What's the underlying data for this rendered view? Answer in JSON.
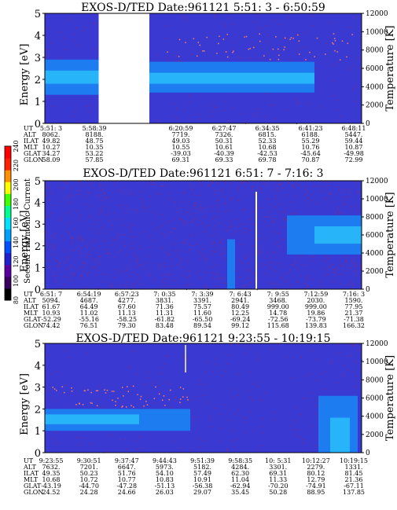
{
  "panels": [
    {
      "title": "EXOS-D/TED   Date:961121  5:51: 3 - 6:50:59",
      "y_ticks": [
        "0",
        "1",
        "2",
        "3",
        "4",
        "5"
      ],
      "y_right_ticks": [
        "0",
        "2000",
        "4000",
        "6000",
        "8000",
        "10000",
        "12000"
      ],
      "ylabel": "Energy [eV]",
      "ylabel_right": "Temperature [K]",
      "data_gap": {
        "from_col": 0.17,
        "to_col": 0.33
      },
      "table": {
        "row_labels": [
          "UT",
          "ALT",
          "ILAT",
          "MLT",
          "GLAT",
          "GLON"
        ],
        "columns": [
          [
            "5:51: 3",
            "8062.",
            "49.82",
            "10.27",
            "34.27",
            "58.09"
          ],
          [
            "5:58:39",
            "8188.",
            "48.75",
            "10.35",
            "53.22",
            "57.85"
          ],
          [
            "",
            "",
            "",
            "",
            "",
            ""
          ],
          [
            "6:20:59",
            "7719.",
            "49.03",
            "10.55",
            "-39.03",
            "69.31"
          ],
          [
            "6:27:47",
            "7326.",
            "50.31",
            "10.61",
            "-40.39",
            "69.33"
          ],
          [
            "6:34:35",
            "6815.",
            "52.33",
            "10.68",
            "-42.53",
            "69.78"
          ],
          [
            "6:41:23",
            "6188.",
            "55.29",
            "10.76",
            "-45.64",
            "70.87"
          ],
          [
            "6:48:11",
            "5447.",
            "59.44",
            "10.87",
            "-49.98",
            "72.99"
          ]
        ]
      },
      "temp_line": false
    },
    {
      "title": "EXOS-D/TED   Date:961121  6:51: 7 - 7:16: 3",
      "y_ticks": [
        "0",
        "1",
        "2",
        "3",
        "4",
        "5"
      ],
      "y_right_ticks": [
        "0",
        "2000",
        "4000",
        "6000",
        "8000",
        "10000",
        "12000"
      ],
      "ylabel": "Energy [eV]",
      "ylabel_right": "Temperature [K]",
      "table": {
        "row_labels": [
          "UT",
          "ALT",
          "ILAT",
          "MLT",
          "GLAT",
          "GLON"
        ],
        "columns": [
          [
            "6:51: 7",
            "5094.",
            "61.67",
            "10.93",
            "-52.29",
            "74.42"
          ],
          [
            "6:54:19",
            "4687.",
            "64.49",
            "11.02",
            "-55.16",
            "76.51"
          ],
          [
            "6:57:23",
            "4277.",
            "67.60",
            "11.13",
            "-58.25",
            "79.30"
          ],
          [
            "7: 0:35",
            "3831.",
            "71.36",
            "11.31",
            "-61.82",
            "83.48"
          ],
          [
            "7: 3:39",
            "3391.",
            "75.57",
            "11.60",
            "-65.50",
            "89.54"
          ],
          [
            "7: 6:43",
            "2941.",
            "80.49",
            "12.25",
            "-69.24",
            "99.12"
          ],
          [
            "7: 9:55",
            "3468.",
            "999.00",
            "14.78",
            "-72.56",
            "115.68"
          ],
          [
            "7:12:59",
            "2030.",
            "999.00",
            "19.86",
            "-73.79",
            "139.83"
          ],
          [
            "7:16: 3",
            "1590.",
            "77.95",
            "21.37",
            "-71.38",
            "166.32"
          ]
        ]
      },
      "temp_line": false
    },
    {
      "title": "EXOS-D/TED   Date:961121  9:23:55 - 10:19:15",
      "y_ticks": [
        "0",
        "1",
        "2",
        "3",
        "4",
        "5"
      ],
      "y_right_ticks": [
        "0",
        "2000",
        "4000",
        "6000",
        "8000",
        "10000",
        "12000"
      ],
      "ylabel": "Energy [eV]",
      "ylabel_right": "Temperature [K]",
      "table": {
        "row_labels": [
          "UT",
          "ALT",
          "ILAT",
          "MLT",
          "GLAT",
          "GLON"
        ],
        "columns": [
          [
            "9:23:55",
            "7632.",
            "49.35",
            "10.68",
            "-43.19",
            "24.52"
          ],
          [
            "9:30:51",
            "7201.",
            "50.23",
            "10.72",
            "-44.70",
            "24.28"
          ],
          [
            "9:37:47",
            "6647.",
            "51.76",
            "10.77",
            "-47.28",
            "24.66"
          ],
          [
            "9:44:43",
            "5973.",
            "54.10",
            "10.83",
            "-51.13",
            "26.03"
          ],
          [
            "9:51:39",
            "5182.",
            "57.49",
            "10.91",
            "-56.38",
            "29.07"
          ],
          [
            "9:58:35",
            "4284.",
            "62.30",
            "11.04",
            "-62.94",
            "35.45"
          ],
          [
            "10: 5:31",
            "3301.",
            "69.31",
            "11.33",
            "-70.20",
            "50.28"
          ],
          [
            "10:12:27",
            "2279.",
            "80.12",
            "12.79",
            "-74.91",
            "88.95"
          ],
          [
            "10:19:15",
            "1331.",
            "81.45",
            "21.36",
            "-67.11",
            "137.85"
          ]
        ]
      },
      "temp_line": false
    }
  ],
  "colorbar": {
    "label": "Second Harmonic Current",
    "ticks": [
      "80",
      "100",
      "120",
      "140",
      "160",
      "180",
      "200",
      "220",
      "240"
    ],
    "colors": [
      "#000000",
      "#3a0060",
      "#5a00a0",
      "#2020d0",
      "#0050ff",
      "#00a0ff",
      "#00e0ff",
      "#00ff90",
      "#40ff00",
      "#ffff00",
      "#ff9000",
      "#ff2000",
      "#ff0000"
    ]
  },
  "colors": {
    "background": "#3a3ad2",
    "noise": "#8a2a78",
    "band": "#1c7cf0",
    "band_core": "#28b4f8",
    "axis": "#000000"
  }
}
